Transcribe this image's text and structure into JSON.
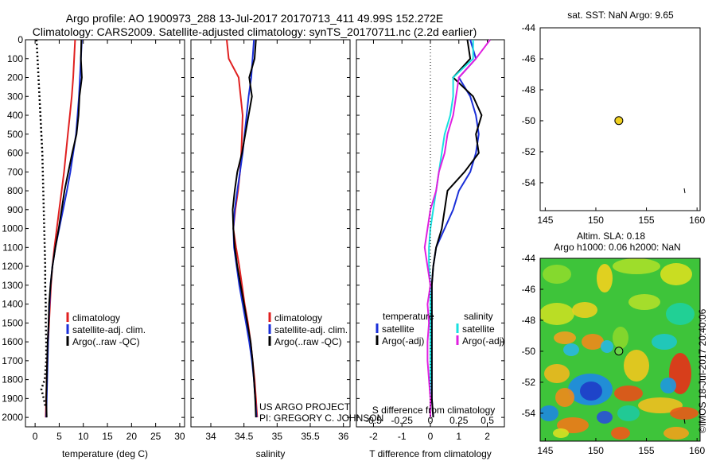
{
  "header": {
    "line1": "Argo profile: AO 1900973_288 13-Jul-2017 20170713_411 49.99S 152.272E",
    "line2": "Climatology: CARS2009. Satellite-adjusted climatology: synTS_20170711.nc (2.2d earlier)"
  },
  "colors": {
    "clim": "#e02020",
    "sat": "#1a2fd8",
    "argo": "#000000",
    "sat_s": "#18e0e0",
    "argo_s": "#e020e0",
    "marker": "#f0d020"
  },
  "credits": {
    "project": "US ARGO PROJECT",
    "pi": "PI: GREGORY C. JOHNSON"
  },
  "watermark": "©IMOS 18-Jul-2017 20:40:06",
  "chart_data": [
    {
      "type": "line",
      "id": "temperature",
      "xlabel": "temperature (deg C)",
      "xlim": [
        -2,
        31
      ],
      "ylim": [
        2050,
        0
      ],
      "xticks": [
        0,
        5,
        10,
        15,
        20,
        25,
        30
      ],
      "yticks": [
        0,
        100,
        200,
        300,
        400,
        500,
        600,
        700,
        800,
        900,
        1000,
        1100,
        1200,
        1300,
        1400,
        1500,
        1600,
        1700,
        1800,
        1900,
        2000
      ],
      "legend": [
        "climatology",
        "satellite-adj. clim.",
        "Argo(..raw -QC)"
      ],
      "series": [
        {
          "name": "climatology",
          "x": [
            8.3,
            8.1,
            7.9,
            7.6,
            7.2,
            6.8,
            6.4,
            6.0,
            5.5,
            5.0,
            4.5,
            4.0,
            3.6,
            3.3,
            3.1,
            2.9,
            2.7,
            2.5,
            2.4,
            2.3,
            2.2
          ],
          "y": [
            0,
            100,
            200,
            300,
            400,
            500,
            600,
            700,
            800,
            900,
            1000,
            1100,
            1200,
            1300,
            1400,
            1500,
            1600,
            1700,
            1800,
            1900,
            2000
          ]
        },
        {
          "name": "satellite-adj. clim.",
          "x": [
            9.7,
            9.5,
            9.3,
            9.1,
            8.8,
            8.5,
            7.9,
            7.3,
            6.6,
            5.8,
            5.0,
            4.2,
            3.6,
            3.2,
            3.0,
            2.8,
            2.7,
            2.6,
            2.5,
            2.4,
            2.3
          ],
          "y": [
            0,
            100,
            200,
            300,
            400,
            500,
            600,
            700,
            800,
            900,
            1000,
            1100,
            1200,
            1300,
            1400,
            1500,
            1600,
            1700,
            1800,
            1900,
            2000
          ]
        },
        {
          "name": "Argo(..raw -QC)",
          "x": [
            9.6,
            9.5,
            9.7,
            9.2,
            9.0,
            8.6,
            7.7,
            6.9,
            6.1,
            5.5,
            4.9,
            4.2,
            3.6,
            3.2,
            2.9,
            2.8,
            2.6,
            2.5,
            2.4,
            2.3,
            2.4
          ],
          "y": [
            0,
            100,
            200,
            300,
            400,
            500,
            600,
            700,
            800,
            900,
            1000,
            1100,
            1200,
            1300,
            1400,
            1500,
            1600,
            1700,
            1800,
            1900,
            2000
          ]
        },
        {
          "name": "raw",
          "x": [
            0.3,
            0.5,
            0.7,
            0.9,
            1.1,
            1.3,
            1.5,
            1.6,
            1.7,
            1.8,
            1.9,
            2.0,
            2.1,
            2.1,
            2.2,
            2.2,
            2.3,
            2.3,
            2.0,
            1.3,
            1.8,
            2.2
          ],
          "y": [
            0,
            100,
            200,
            300,
            400,
            500,
            600,
            700,
            800,
            900,
            1000,
            1100,
            1200,
            1300,
            1400,
            1500,
            1600,
            1700,
            1800,
            1850,
            1900,
            1950
          ]
        }
      ]
    },
    {
      "type": "line",
      "id": "salinity",
      "xlabel": "salinity",
      "xlim": [
        33.7,
        36.1
      ],
      "ylim": [
        2050,
        0
      ],
      "xticks": [
        34,
        34.5,
        35,
        35.5,
        36
      ],
      "legend": [
        "climatology",
        "satellite-adj. clim.",
        "Argo(..raw -QC)"
      ],
      "series": [
        {
          "name": "climatology",
          "x": [
            34.24,
            34.27,
            34.42,
            34.45,
            34.48,
            34.47,
            34.46,
            34.44,
            34.41,
            34.37,
            34.34,
            34.38,
            34.43,
            34.47,
            34.51,
            34.56,
            34.6,
            34.63,
            34.66,
            34.68,
            34.7
          ],
          "y": [
            0,
            100,
            200,
            300,
            400,
            500,
            600,
            700,
            800,
            900,
            1000,
            1100,
            1200,
            1300,
            1400,
            1500,
            1600,
            1700,
            1800,
            1900,
            2000
          ]
        },
        {
          "name": "satellite-adj. clim.",
          "x": [
            34.65,
            34.63,
            34.61,
            34.57,
            34.54,
            34.51,
            34.48,
            34.44,
            34.4,
            34.36,
            34.34,
            34.35,
            34.39,
            34.43,
            34.48,
            34.53,
            34.58,
            34.62,
            34.65,
            34.67,
            34.69
          ],
          "y": [
            0,
            100,
            200,
            300,
            400,
            500,
            600,
            700,
            800,
            900,
            1000,
            1100,
            1200,
            1300,
            1400,
            1500,
            1600,
            1700,
            1800,
            1900,
            2000
          ]
        },
        {
          "name": "Argo(..raw -QC)",
          "x": [
            34.68,
            34.66,
            34.58,
            34.62,
            34.57,
            34.52,
            34.47,
            34.4,
            34.36,
            34.33,
            34.34,
            34.36,
            34.4,
            34.45,
            34.5,
            34.55,
            34.6,
            34.63,
            34.65,
            34.67,
            34.68
          ],
          "y": [
            0,
            100,
            200,
            300,
            400,
            500,
            600,
            700,
            800,
            900,
            1000,
            1100,
            1200,
            1300,
            1400,
            1500,
            1600,
            1700,
            1800,
            1900,
            2000
          ]
        }
      ]
    },
    {
      "type": "line",
      "id": "difference",
      "xlabel": "T difference from climatology",
      "xlabel2": "S difference from climatology",
      "xlim": [
        -2.6,
        2.6
      ],
      "ylim": [
        2050,
        0
      ],
      "xticks": [
        -2,
        -1,
        0,
        1,
        2
      ],
      "xticks2": [
        -0.5,
        -0.25,
        0,
        0.25,
        0.5
      ],
      "xtick_labels2": [
        "-0.5",
        "-0.25",
        "0",
        "0.25",
        "0.5"
      ],
      "legend_titles": [
        "temperature",
        "salinity"
      ],
      "legend": [
        "satellite",
        "Argo(-adj)",
        "satellite",
        "Argo(-adj)"
      ],
      "series": [
        {
          "name": "temperature satellite",
          "x": [
            1.4,
            1.6,
            1.0,
            1.4,
            1.6,
            1.7,
            1.6,
            1.4,
            1.0,
            0.8,
            0.5,
            0.2,
            0.1,
            0.05,
            0.05,
            0.05,
            0.05,
            0.05,
            0.05,
            0.05,
            0.1
          ],
          "y": [
            0,
            100,
            200,
            300,
            400,
            500,
            600,
            700,
            800,
            900,
            1000,
            1100,
            1200,
            1300,
            1400,
            1500,
            1600,
            1700,
            1800,
            1900,
            2000
          ]
        },
        {
          "name": "temperature Argo(-adj)",
          "x": [
            1.3,
            1.4,
            0.8,
            1.5,
            1.8,
            1.6,
            1.7,
            1.2,
            0.6,
            0.5,
            0.4,
            0.2,
            0.1,
            0.05,
            0.05,
            0.05,
            0.05,
            0.05,
            0.05,
            0.05,
            0.1
          ],
          "y": [
            0,
            100,
            200,
            300,
            400,
            500,
            600,
            700,
            800,
            900,
            1000,
            1100,
            1200,
            1300,
            1400,
            1500,
            1600,
            1700,
            1800,
            1900,
            2000
          ]
        },
        {
          "name": "salinity satellite",
          "x": [
            1.5,
            1.5,
            0.8,
            0.8,
            0.7,
            0.5,
            0.4,
            0.3,
            0.2,
            0.1,
            0.0,
            -0.05,
            -0.05,
            0.0,
            0.0,
            0.0,
            0.0,
            0.0,
            0.0,
            0.0,
            0.0
          ],
          "y": [
            0,
            100,
            200,
            300,
            400,
            500,
            600,
            700,
            800,
            900,
            1000,
            1100,
            1200,
            1300,
            1400,
            1500,
            1600,
            1700,
            1800,
            1900,
            2000
          ]
        },
        {
          "name": "salinity Argo(-adj)",
          "x": [
            2.1,
            1.6,
            1.0,
            0.9,
            0.8,
            0.6,
            0.5,
            0.3,
            0.2,
            0.0,
            -0.1,
            -0.2,
            -0.1,
            0.0,
            -0.1,
            -0.05,
            -0.1,
            -0.1,
            -0.05,
            0.0,
            0.0
          ],
          "y": [
            0,
            100,
            200,
            300,
            400,
            500,
            600,
            700,
            800,
            900,
            1000,
            1100,
            1200,
            1300,
            1400,
            1500,
            1600,
            1700,
            1800,
            1900,
            2000
          ]
        }
      ]
    },
    {
      "type": "scatter",
      "id": "sst_map",
      "title": "sat. SST: NaN Argo: 9.65",
      "xlim": [
        144.5,
        160.3
      ],
      "ylim": [
        -55.8,
        -44
      ],
      "xticks": [
        145,
        150,
        155,
        160
      ],
      "yticks": [
        -44,
        -46,
        -48,
        -50,
        -52,
        -54
      ],
      "points": [
        {
          "x": 152.272,
          "y": -49.99
        }
      ]
    },
    {
      "type": "heatmap",
      "id": "sla_map",
      "title": "Altim. SLA: 0.18",
      "subtitle": "Argo h1000: 0.06 h2000: NaN",
      "xlim": [
        144.5,
        160.3
      ],
      "ylim": [
        -55.8,
        -44
      ],
      "xticks": [
        145,
        150,
        155,
        160
      ],
      "yticks": [
        -44,
        -46,
        -48,
        -50,
        -52,
        -54
      ],
      "points": [
        {
          "x": 152.272,
          "y": -49.99
        }
      ]
    }
  ]
}
